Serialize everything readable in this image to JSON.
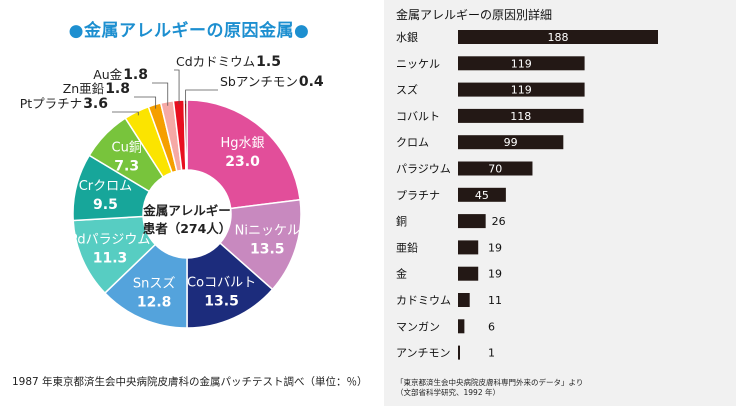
{
  "pie": {
    "title": "●金属アレルギーの原因金属●",
    "center_line1": "金属アレルギー",
    "center_line2": "患者（274人）",
    "footnote": "1987 年東京都済生会中央病院皮膚科の金属パッチテスト調べ（単位：％）"
  },
  "bar": {
    "title": "金属アレルギーの原因別詳細",
    "source_line1": "「東京都済生会中央病院皮膚科専門外来のデータ」より",
    "source_line2": "（文部省科学研究、1992 年）"
  },
  "chart_data": [
    {
      "type": "pie",
      "title": "●金属アレルギーの原因金属●",
      "unit": "％",
      "slices": [
        {
          "label": "Hg水銀",
          "value": 23.0,
          "color": "#e24e9a",
          "label_text": "23.0"
        },
        {
          "label": "Niニッケル",
          "value": 13.5,
          "color": "#c889bf",
          "label_text": "13.5"
        },
        {
          "label": "Coコバルト",
          "value": 13.5,
          "color": "#1c2c7c",
          "label_text": "13.5"
        },
        {
          "label": "Snスズ",
          "value": 12.8,
          "color": "#54a3dc",
          "label_text": "12.8"
        },
        {
          "label": "Pdパラジウム",
          "value": 11.3,
          "color": "#57cdc2",
          "label_text": "11.3"
        },
        {
          "label": "Crクロム",
          "value": 9.5,
          "color": "#17a69a",
          "label_text": "9.5"
        },
        {
          "label": "Cu銅",
          "value": 7.3,
          "color": "#78c43c",
          "label_text": "7.3"
        },
        {
          "label": "Ptプラチナ",
          "value": 3.6,
          "color": "#fbe400",
          "label_text": "3.6"
        },
        {
          "label": "Zn亜鉛",
          "value": 1.8,
          "color": "#f59f00",
          "label_text": "1.8"
        },
        {
          "label": "Au金",
          "value": 1.8,
          "color": "#f5a9a5",
          "label_text": "1.8"
        },
        {
          "label": "Cdカドミウム",
          "value": 1.5,
          "color": "#e80f1f",
          "label_text": "1.5"
        },
        {
          "label": "Sbアンチモン",
          "value": 0.4,
          "color": "#8a1010",
          "label_text": "0.4"
        }
      ]
    },
    {
      "type": "bar",
      "orientation": "horizontal",
      "title": "金属アレルギーの原因別詳細",
      "categories": [
        "水銀",
        "ニッケル",
        "スズ",
        "コバルト",
        "クロム",
        "パラジウム",
        "プラチナ",
        "銅",
        "亜鉛",
        "金",
        "カドミウム",
        "マンガン",
        "アンチモン"
      ],
      "values": [
        188,
        119,
        119,
        118,
        99,
        70,
        45,
        26,
        19,
        19,
        11,
        6,
        1
      ],
      "bar_color": "#231815",
      "grid": false
    }
  ]
}
